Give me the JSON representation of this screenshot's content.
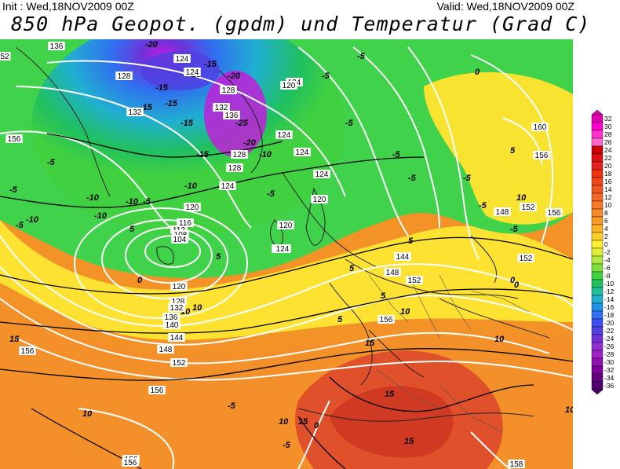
{
  "header": {
    "init": "Init : Wed,18NOV2009 00Z",
    "valid": "Valid: Wed,18NOV2009 00Z",
    "title": "850 hPa Geopot. (gpdm) und Temperatur (Grad C)"
  },
  "legend": {
    "values": [
      "32",
      "30",
      "28",
      "26",
      "24",
      "22",
      "20",
      "18",
      "16",
      "14",
      "12",
      "10",
      "8",
      "6",
      "4",
      "2",
      "0",
      "-2",
      "-4",
      "-6",
      "-8",
      "-10",
      "-12",
      "-14",
      "-16",
      "-18",
      "-20",
      "-22",
      "-24",
      "-26",
      "-28",
      "-30",
      "-32",
      "-34",
      "-36"
    ],
    "colors": [
      "#e000b0",
      "#ff00cc",
      "#ff33cc",
      "#ff66cc",
      "#cc0000",
      "#dd1111",
      "#e82222",
      "#ee3311",
      "#f04418",
      "#f25520",
      "#f46628",
      "#f77a2a",
      "#f98a28",
      "#fb9a26",
      "#fdb324",
      "#fdd028",
      "#fff030",
      "#e0f038",
      "#b0ea40",
      "#80e040",
      "#40d040",
      "#20c060",
      "#20c0a0",
      "#20b0d0",
      "#2090e8",
      "#3070f0",
      "#4050f0",
      "#5040e0",
      "#7030d8",
      "#9030d0",
      "#a020c8",
      "#9010b0",
      "#7a0098",
      "#600080",
      "#500070"
    ]
  },
  "temperature_labels": [
    {
      "text": "-20"
    },
    {
      "text": "-15"
    },
    {
      "text": "-15"
    },
    {
      "text": "-15"
    },
    {
      "text": "-15"
    },
    {
      "text": "-15"
    },
    {
      "text": "-20"
    },
    {
      "text": "-25"
    },
    {
      "text": "-20"
    },
    {
      "text": "-15"
    },
    {
      "text": "-10"
    },
    {
      "text": "-10"
    },
    {
      "text": "-10"
    },
    {
      "text": "-10"
    },
    {
      "text": "-5"
    },
    {
      "text": "-5"
    },
    {
      "text": "-5"
    },
    {
      "text": "-5"
    },
    {
      "text": "-5"
    },
    {
      "text": "-5"
    },
    {
      "text": "-5"
    },
    {
      "text": "-5"
    },
    {
      "text": "-5"
    },
    {
      "text": "-5"
    },
    {
      "text": "-5"
    },
    {
      "text": "0"
    },
    {
      "text": "0"
    },
    {
      "text": "0"
    },
    {
      "text": "0"
    },
    {
      "text": "5"
    },
    {
      "text": "5"
    },
    {
      "text": "10"
    },
    {
      "text": "10"
    },
    {
      "text": "10"
    },
    {
      "text": "10"
    },
    {
      "text": "10"
    },
    {
      "text": "15"
    },
    {
      "text": "15"
    },
    {
      "text": "15"
    },
    {
      "text": "15"
    },
    {
      "text": "15"
    },
    {
      "text": "5"
    },
    {
      "text": "5"
    },
    {
      "text": "10"
    },
    {
      "text": "-15"
    },
    {
      "text": "-10"
    },
    {
      "text": "-10"
    },
    {
      "text": "-5"
    },
    {
      "text": "-5"
    },
    {
      "text": "-5"
    },
    {
      "text": "10"
    },
    {
      "text": "5"
    },
    {
      "text": "0"
    },
    {
      "text": "5"
    },
    {
      "text": "5"
    },
    {
      "text": "10"
    },
    {
      "text": "-5"
    }
  ],
  "geopotential_labels": [
    {
      "text": "136"
    },
    {
      "text": "124"
    },
    {
      "text": "124"
    },
    {
      "text": "128"
    },
    {
      "text": "132"
    },
    {
      "text": "124"
    },
    {
      "text": "128"
    },
    {
      "text": "132"
    },
    {
      "text": "136"
    },
    {
      "text": "124"
    },
    {
      "text": "120"
    },
    {
      "text": "156"
    },
    {
      "text": "128"
    },
    {
      "text": "128"
    },
    {
      "text": "124"
    },
    {
      "text": "124"
    },
    {
      "text": "120"
    },
    {
      "text": "124"
    },
    {
      "text": "124"
    },
    {
      "text": "120"
    },
    {
      "text": "116"
    },
    {
      "text": "112"
    },
    {
      "text": "108"
    },
    {
      "text": "104"
    },
    {
      "text": "120"
    },
    {
      "text": "120"
    },
    {
      "text": "124"
    },
    {
      "text": "128"
    },
    {
      "text": "132"
    },
    {
      "text": "136"
    },
    {
      "text": "140"
    },
    {
      "text": "144"
    },
    {
      "text": "148"
    },
    {
      "text": "152"
    },
    {
      "text": "156"
    },
    {
      "text": "156"
    },
    {
      "text": "156"
    },
    {
      "text": "156"
    },
    {
      "text": "144"
    },
    {
      "text": "148"
    },
    {
      "text": "152"
    },
    {
      "text": "156"
    },
    {
      "text": "148"
    },
    {
      "text": "152"
    },
    {
      "text": "152"
    },
    {
      "text": "156"
    },
    {
      "text": "160"
    },
    {
      "text": "156"
    },
    {
      "text": "158"
    },
    {
      "text": "52"
    }
  ]
}
